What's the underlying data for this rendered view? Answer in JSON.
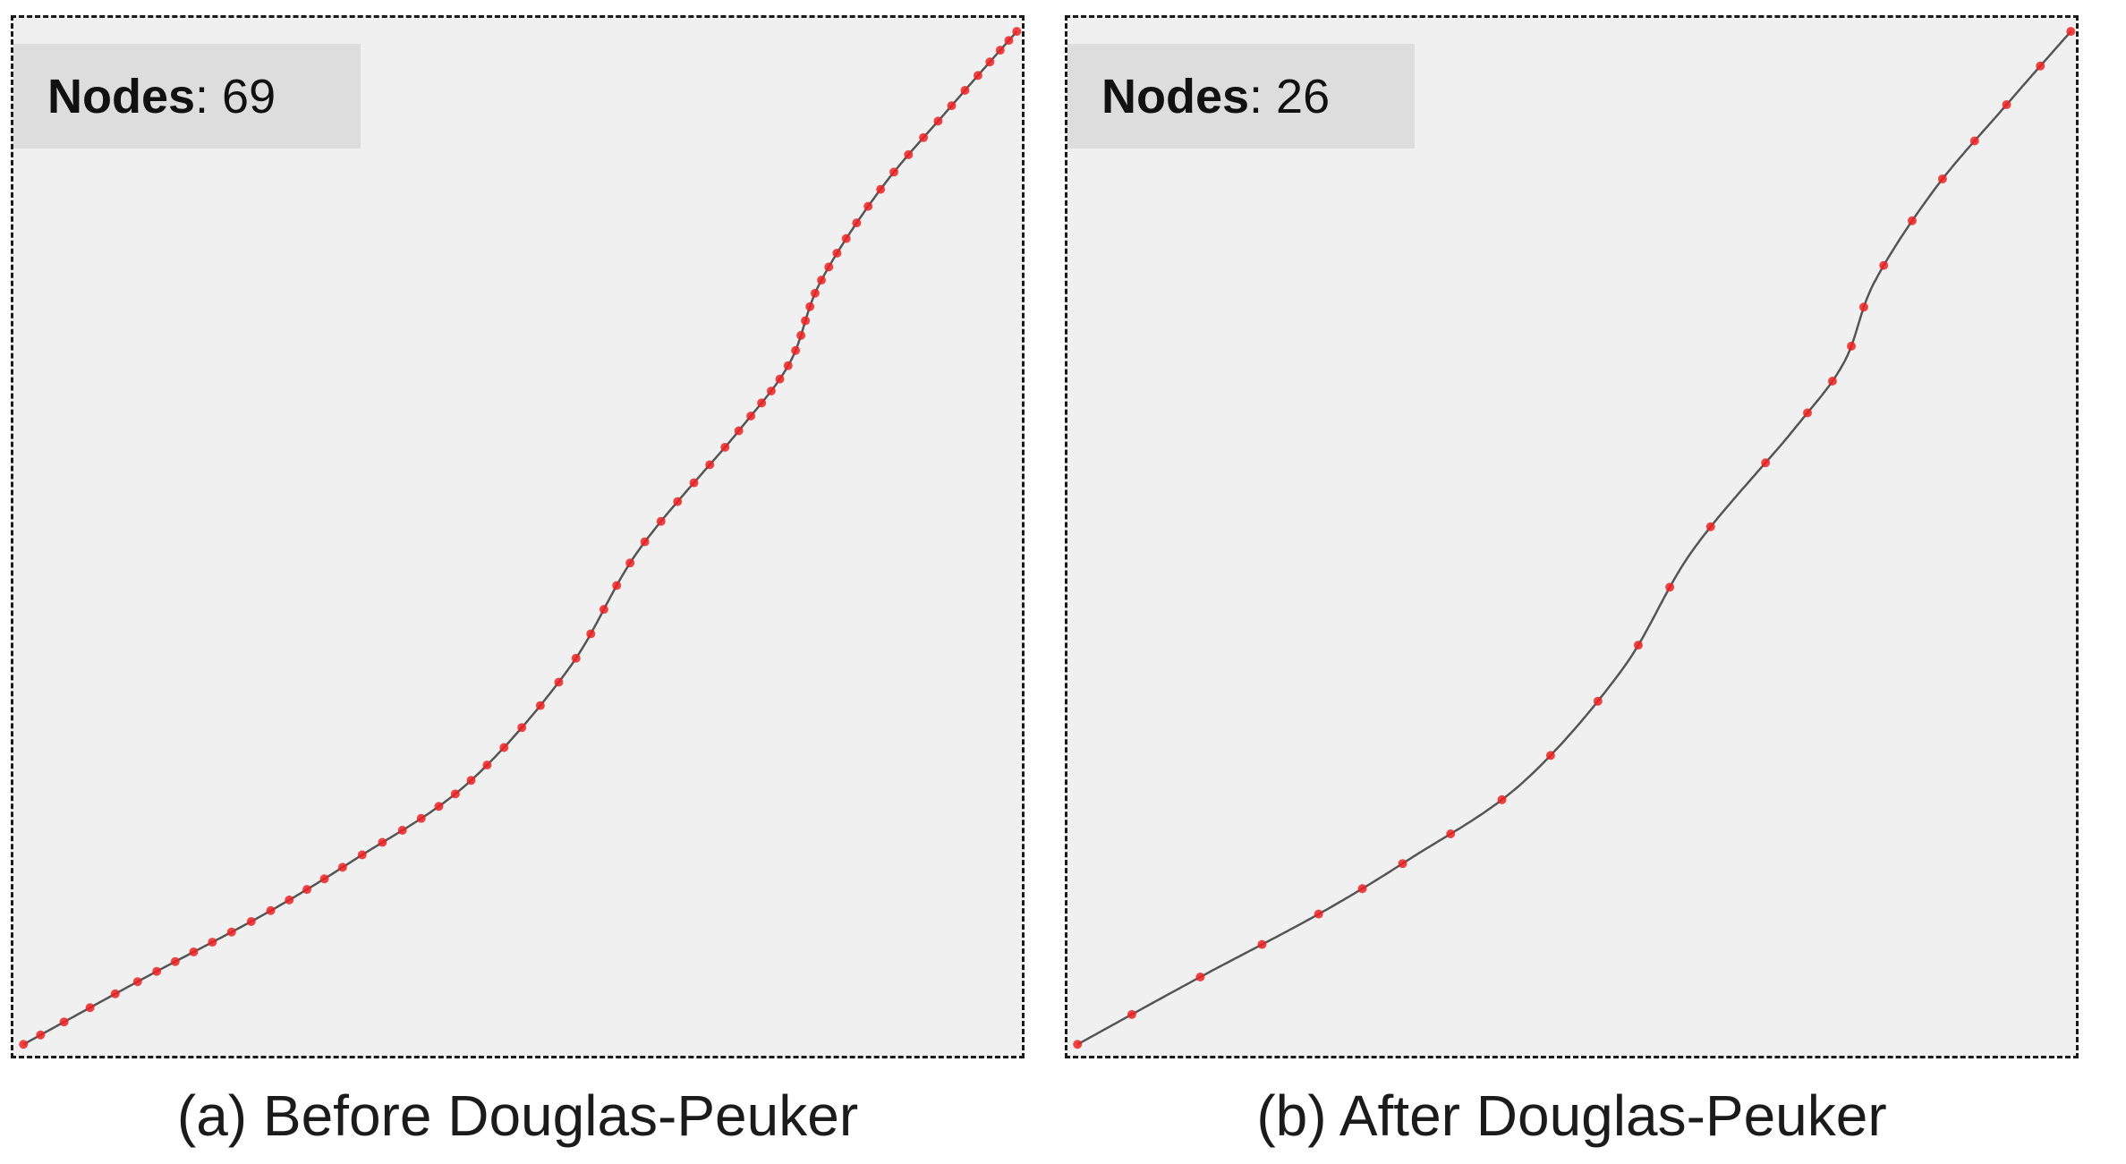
{
  "panel_a": {
    "caption": "(a) Before Douglas-Peuker",
    "nodes_label": "Nodes",
    "nodes_value": ": 69"
  },
  "panel_b": {
    "caption": "(b) After Douglas-Peuker",
    "nodes_label": "Nodes",
    "nodes_value": ": 26"
  },
  "colors": {
    "line": "#555555",
    "node": "#ee2222"
  }
}
